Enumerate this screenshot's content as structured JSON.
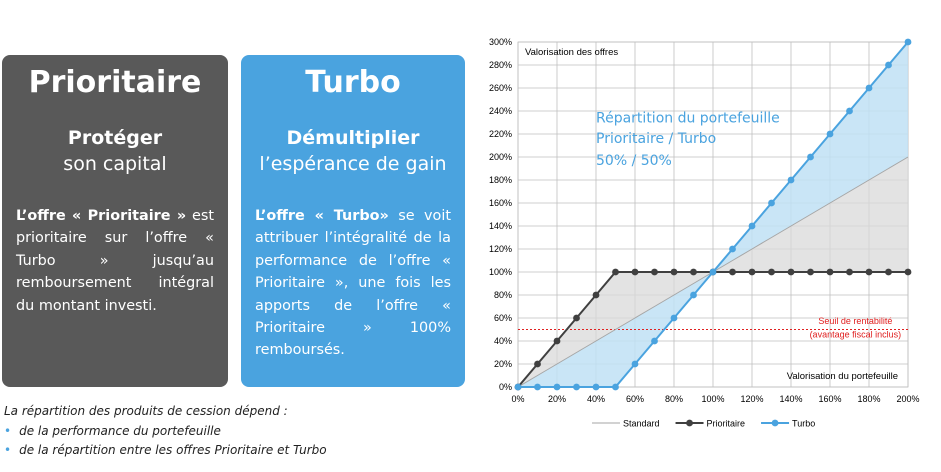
{
  "cards": {
    "prioritaire": {
      "title": "Prioritaire",
      "verb": "Protéger",
      "object": "son capital",
      "body_bold": "L’offre « Prioritaire »",
      "body_rest": " est prioritaire sur l’offre « Turbo » jusqu’au remboursement intégral du montant investi.",
      "color": "#595959"
    },
    "turbo": {
      "title": "Turbo",
      "verb": "Démultiplier",
      "object": "l’espérance de gain",
      "body_bold": "L’offre « Turbo»",
      "body_rest": " se voit attribuer l’intégralité de la performance de l’offre « Prioritaire », une fois les apports de l’offre « Prioritaire » 100% remboursés.",
      "color": "#4aa3df"
    }
  },
  "footnote": {
    "intro": "La répartition des produits de cession dépend :",
    "items": [
      "de la performance du portefeuille",
      "de la répartition entre les offres Prioritaire et Turbo"
    ]
  },
  "chart_data": {
    "type": "line",
    "title": "Valorisation des offres",
    "xlabel": "Valorisation du portefeuille",
    "ylabel": "Valorisation des offres",
    "x_ticks": [
      "0%",
      "20%",
      "40%",
      "60%",
      "80%",
      "100%",
      "120%",
      "140%",
      "160%",
      "180%",
      "200%"
    ],
    "y_ticks": [
      "0%",
      "20%",
      "40%",
      "60%",
      "80%",
      "100%",
      "120%",
      "140%",
      "160%",
      "180%",
      "200%",
      "220%",
      "240%",
      "260%",
      "280%",
      "300%"
    ],
    "xlim": [
      0,
      200
    ],
    "ylim": [
      0,
      300
    ],
    "grid": true,
    "legend_position": "bottom",
    "x": [
      0,
      10,
      20,
      30,
      40,
      50,
      60,
      70,
      80,
      90,
      100,
      110,
      120,
      130,
      140,
      150,
      160,
      170,
      180,
      190,
      200
    ],
    "series": [
      {
        "name": "Standard",
        "color": "#a6a6a6",
        "marker": false,
        "values": [
          0,
          10,
          20,
          30,
          40,
          50,
          60,
          70,
          80,
          90,
          100,
          110,
          120,
          130,
          140,
          150,
          160,
          170,
          180,
          190,
          200
        ]
      },
      {
        "name": "Prioritaire",
        "color": "#404040",
        "marker": true,
        "values": [
          0,
          20,
          40,
          60,
          80,
          100,
          100,
          100,
          100,
          100,
          100,
          100,
          100,
          100,
          100,
          100,
          100,
          100,
          100,
          100,
          100
        ]
      },
      {
        "name": "Turbo",
        "color": "#4aa3df",
        "marker": true,
        "values": [
          0,
          0,
          0,
          0,
          0,
          0,
          20,
          40,
          60,
          80,
          100,
          120,
          140,
          160,
          180,
          200,
          220,
          240,
          260,
          280,
          300
        ]
      }
    ],
    "annotations": {
      "repartition_lines": [
        "Répartition du portefeuille",
        "Prioritaire / Turbo",
        "50% / 50%"
      ],
      "threshold_lines": [
        "Seuil de rentabilité",
        "(avantage fiscal inclus)"
      ],
      "threshold_value": 50
    },
    "colors": {
      "gray_fill": "#d9d9d9",
      "blue_fill": "#bfe0f5",
      "threshold": "#e02020"
    }
  }
}
